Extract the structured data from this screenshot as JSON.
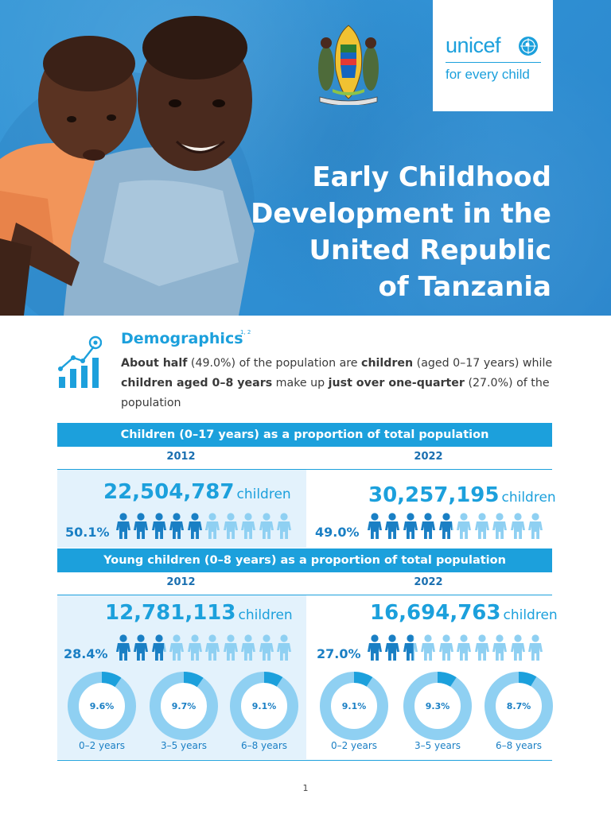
{
  "hero": {
    "title_lines": [
      "Early Childhood",
      "Development in the",
      "United Republic",
      "of Tanzania"
    ],
    "logo": {
      "brand": "unicef",
      "tagline": "for every child"
    }
  },
  "demographics": {
    "heading": "Demographics",
    "footnote_refs": "1, 2",
    "text": {
      "p1_bold": "About half",
      "p2": " (49.0%) of the population are ",
      "p3_bold": "children",
      "p4": " (aged 0–17 years) while ",
      "p5_bold": "children aged 0–8 years",
      "p6": " make up ",
      "p7_bold": "just over one-quarter",
      "p8": " (27.0%) of the population"
    }
  },
  "section1": {
    "title": "Children (0–17 years) as a proportion of total population",
    "years": [
      "2012",
      "2022"
    ],
    "cols": [
      {
        "year": "2012",
        "count": "22,504,787",
        "unit": "children",
        "pct": "50.1%",
        "fill": 0.501
      },
      {
        "year": "2022",
        "count": "30,257,195",
        "unit": "children",
        "pct": "49.0%",
        "fill": 0.49
      }
    ]
  },
  "section2": {
    "title": "Young children (0–8 years) as a proportion of total population",
    "years": [
      "2012",
      "2022"
    ],
    "cols": [
      {
        "year": "2012",
        "count": "12,781,113",
        "unit": "children",
        "pct": "28.4%",
        "fill": 0.284,
        "donuts": [
          {
            "value": "9.6%",
            "fraction": 0.096,
            "label": "0–2 years"
          },
          {
            "value": "9.7%",
            "fraction": 0.097,
            "label": "3–5 years"
          },
          {
            "value": "9.1%",
            "fraction": 0.091,
            "label": "6–8 years"
          }
        ]
      },
      {
        "year": "2022",
        "count": "16,694,763",
        "unit": "children",
        "pct": "27.0%",
        "fill": 0.27,
        "donuts": [
          {
            "value": "9.1%",
            "fraction": 0.091,
            "label": "0–2 years"
          },
          {
            "value": "9.3%",
            "fraction": 0.093,
            "label": "3–5 years"
          },
          {
            "value": "8.7%",
            "fraction": 0.087,
            "label": "6–8 years"
          }
        ]
      }
    ]
  },
  "colors": {
    "accent": "#1ca0dc",
    "dark_blue": "#1a7fc4",
    "light_fill": "#8fd0f2",
    "panel": "#e3f2fc"
  },
  "page_number": "1"
}
